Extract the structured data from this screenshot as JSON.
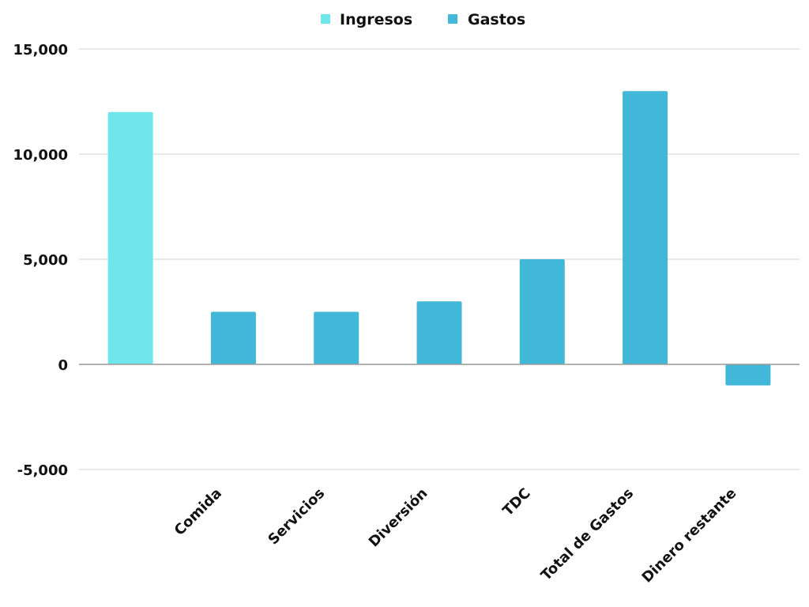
{
  "chart_data": {
    "type": "bar",
    "categories": [
      "",
      "Comida",
      "Servicios",
      "Diversión",
      "TDC",
      "Total de Gastos",
      "Dinero restante"
    ],
    "series": [
      {
        "name": "Ingresos",
        "color": "#6ee6ea",
        "values": [
          12000,
          null,
          null,
          null,
          null,
          null,
          null
        ]
      },
      {
        "name": "Gastos",
        "color": "#42b8d8",
        "values": [
          null,
          2500,
          2500,
          3000,
          5000,
          13000,
          -1000
        ]
      }
    ],
    "yticks": [
      -5000,
      0,
      5000,
      10000,
      15000
    ],
    "ytick_labels": [
      "-5,000",
      "0",
      "5,000",
      "10,000",
      "15,000"
    ],
    "ylim": [
      -5000,
      15000
    ],
    "grid": true,
    "legend": "top-center",
    "gridline_color": "#d9d9d9",
    "zero_line_color": "#999999"
  }
}
